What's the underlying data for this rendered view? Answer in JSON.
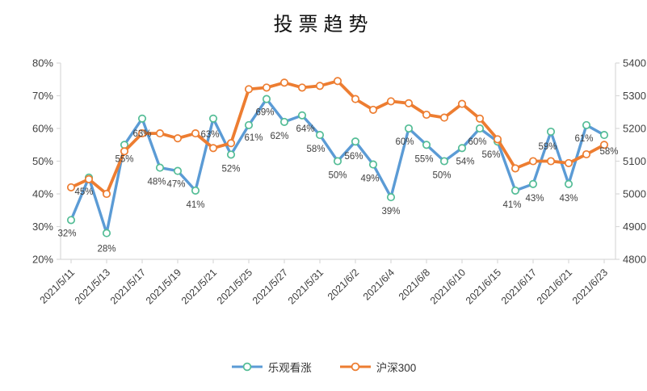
{
  "title": "投票趋势",
  "chart_data": {
    "type": "line",
    "title": "投票趋势",
    "x_tick_labels": [
      "2021/5/11",
      "2021/5/13",
      "2021/5/17",
      "2021/5/19",
      "2021/5/21",
      "2021/5/25",
      "2021/5/27",
      "2021/5/31",
      "2021/6/2",
      "2021/6/4",
      "2021/6/8",
      "2021/6/10",
      "2021/6/15",
      "2021/6/17",
      "2021/6/21",
      "2021/6/23"
    ],
    "x_label_every": 2,
    "point_count": 31,
    "left_axis": {
      "min": 20,
      "max": 80,
      "step": 10,
      "tick_labels": [
        "20%",
        "30%",
        "40%",
        "50%",
        "60%",
        "70%",
        "80%"
      ]
    },
    "right_axis": {
      "min": 4800,
      "max": 5400,
      "step": 100,
      "tick_labels": [
        "4800",
        "4900",
        "5000",
        "5100",
        "5200",
        "5300",
        "5400"
      ]
    },
    "grid": false,
    "legend_position": "bottom",
    "axis_color": "#d9d9d9",
    "series": [
      {
        "name": "乐观看涨",
        "axis": "left",
        "color": "#5B9BD5",
        "marker_color": "#54BD96",
        "values": [
          32,
          45,
          28,
          55,
          63,
          48,
          47,
          41,
          63,
          52,
          61,
          69,
          62,
          64,
          58,
          50,
          56,
          49,
          39,
          60,
          55,
          50,
          54,
          60,
          56,
          41,
          43,
          59,
          43,
          61,
          58
        ],
        "point_labels": [
          "32%",
          "45%",
          "28%",
          "55%",
          "63%",
          "48%",
          "47%",
          "41%",
          "63%",
          "52%",
          "61%",
          "69%",
          "62%",
          "64%",
          "58%",
          "50%",
          "56%",
          "49%",
          "39%",
          "60%",
          "55%",
          "50%",
          "54%",
          "60%",
          "56%",
          "41%",
          "43%",
          "59%",
          "43%",
          "61%",
          "58%"
        ]
      },
      {
        "name": "沪深300",
        "axis": "right",
        "color": "#ED7D31",
        "marker_color": "#ED7D31",
        "values": [
          5020,
          5045,
          5000,
          5130,
          5185,
          5185,
          5170,
          5185,
          5140,
          5155,
          5320,
          5325,
          5340,
          5325,
          5330,
          5345,
          5290,
          5257,
          5283,
          5277,
          5242,
          5233,
          5275,
          5230,
          5167,
          5078,
          5100,
          5100,
          5094,
          5121,
          5150
        ]
      }
    ]
  }
}
